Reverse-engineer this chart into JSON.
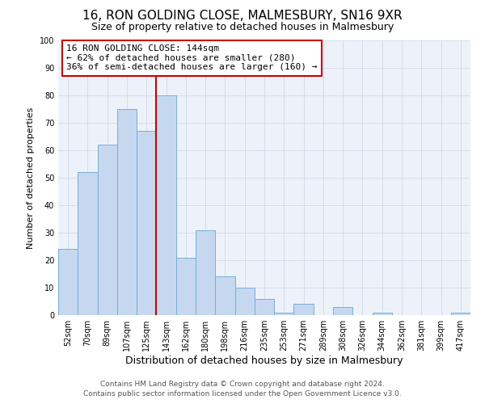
{
  "title": "16, RON GOLDING CLOSE, MALMESBURY, SN16 9XR",
  "subtitle": "Size of property relative to detached houses in Malmesbury",
  "xlabel": "Distribution of detached houses by size in Malmesbury",
  "ylabel": "Number of detached properties",
  "bar_labels": [
    "52sqm",
    "70sqm",
    "89sqm",
    "107sqm",
    "125sqm",
    "143sqm",
    "162sqm",
    "180sqm",
    "198sqm",
    "216sqm",
    "235sqm",
    "253sqm",
    "271sqm",
    "289sqm",
    "308sqm",
    "326sqm",
    "344sqm",
    "362sqm",
    "381sqm",
    "399sqm",
    "417sqm"
  ],
  "bar_values": [
    24,
    52,
    62,
    75,
    67,
    80,
    21,
    31,
    14,
    10,
    6,
    1,
    4,
    0,
    3,
    0,
    1,
    0,
    0,
    0,
    1
  ],
  "bar_color": "#c5d8f0",
  "bar_edge_color": "#7aadd4",
  "vline_index": 5,
  "vline_color": "#cc0000",
  "ylim": [
    0,
    100
  ],
  "yticks": [
    0,
    10,
    20,
    30,
    40,
    50,
    60,
    70,
    80,
    90,
    100
  ],
  "annotation_title": "16 RON GOLDING CLOSE: 144sqm",
  "annotation_line1": "← 62% of detached houses are smaller (280)",
  "annotation_line2": "36% of semi-detached houses are larger (160) →",
  "annotation_box_color": "#cc0000",
  "annotation_bg": "#ffffff",
  "footer1": "Contains HM Land Registry data © Crown copyright and database right 2024.",
  "footer2": "Contains public sector information licensed under the Open Government Licence v3.0.",
  "grid_color": "#d0d8e8",
  "background_color": "#edf2fa",
  "fig_bg": "#ffffff",
  "title_fontsize": 11,
  "subtitle_fontsize": 9,
  "xlabel_fontsize": 9,
  "ylabel_fontsize": 8,
  "tick_fontsize": 7,
  "annotation_fontsize": 8,
  "footer_fontsize": 6.5
}
